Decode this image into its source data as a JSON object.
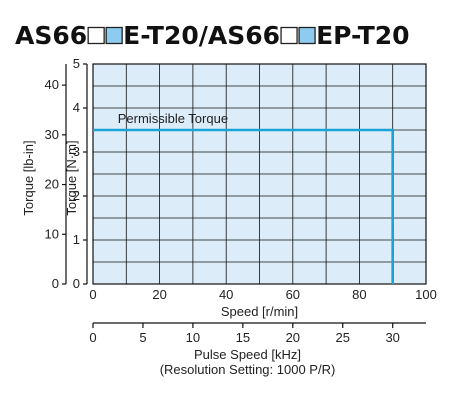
{
  "header": {
    "title_parts": [
      "AS66",
      "E-T20/AS66",
      "EP-T20"
    ]
  },
  "chart_data": {
    "type": "line",
    "x_axis": {
      "label": "Speed [r/min]",
      "ticks": [
        0,
        20,
        40,
        60,
        80,
        100
      ],
      "range": [
        0,
        100
      ],
      "grid_step": 10
    },
    "y_axis_right": {
      "label": "Torque [N·m]",
      "ticks": [
        0,
        1,
        2,
        3,
        4,
        5
      ],
      "range": [
        0,
        5
      ],
      "grid_step": 0.5
    },
    "y_axis_left": {
      "label": "Torque [lb-in]",
      "ticks": [
        0,
        10,
        20,
        30,
        40
      ],
      "range_equivalent_nm": [
        0,
        5
      ],
      "lbin_per_nm": 8.85
    },
    "secondary_x_axis": {
      "label_line1": "Pulse Speed [kHz]",
      "label_line2": "(Resolution Setting: 1000 P/R)",
      "ticks": [
        0,
        5,
        10,
        15,
        20,
        25,
        30
      ],
      "r_min_per_khz": 3
    },
    "series": [
      {
        "name": "Permissible Torque",
        "x": [
          0,
          90,
          90
        ],
        "y": [
          3.5,
          3.5,
          0
        ]
      }
    ],
    "annotations": [
      {
        "text": "Permissible Torque",
        "x": 24,
        "y": 3.5
      }
    ],
    "grid": true,
    "colors": {
      "plot_background": "#dcecf8",
      "grid": "#111111",
      "series": "#1aa3d9",
      "swatch_blue": "#8ecbf0",
      "text": "#222222"
    }
  }
}
